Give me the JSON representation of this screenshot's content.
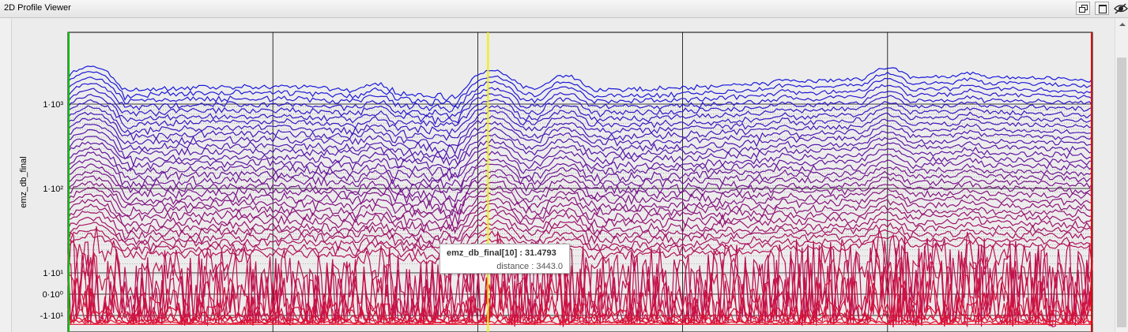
{
  "window": {
    "title": "2D Profile Viewer",
    "buttons": {
      "restore_icon": "restore-window-icon",
      "maximize_icon": "maximize-window-icon",
      "visibility_icon": "eye-icon"
    }
  },
  "tooltip": {
    "series_label": "emz_db_final[10] : 31.4793",
    "distance_label": "distance : 3443.0"
  },
  "chart_data": {
    "type": "line",
    "title": "",
    "xlabel": "",
    "ylabel": "emz_db_final",
    "yscale": "symlog",
    "y_ticks": [
      "1·10³",
      "1·10²",
      "1·10¹",
      "0·10⁰",
      "-1·10¹"
    ],
    "y_tick_values": [
      1000,
      100,
      10,
      0,
      -10
    ],
    "grid": true,
    "legend": "none",
    "x_range_relative": [
      0,
      1
    ],
    "cursor_x_relative": 0.41,
    "colors": {
      "top_series": "#1a1adc",
      "bottom_series": "#e8102a",
      "left_marker": "#00c000",
      "right_marker": "#e00000",
      "cursor": "#f0f000"
    },
    "series_count": 40,
    "peaks": [
      [
        0.022,
        1.0
      ],
      [
        0.125,
        0.42
      ],
      [
        0.21,
        0.48
      ],
      [
        0.3,
        0.52
      ],
      [
        0.415,
        0.85
      ],
      [
        0.485,
        0.7
      ],
      [
        0.7,
        0.62
      ],
      [
        0.8,
        0.95
      ],
      [
        0.88,
        0.78
      ],
      [
        0.955,
        0.5
      ]
    ]
  }
}
